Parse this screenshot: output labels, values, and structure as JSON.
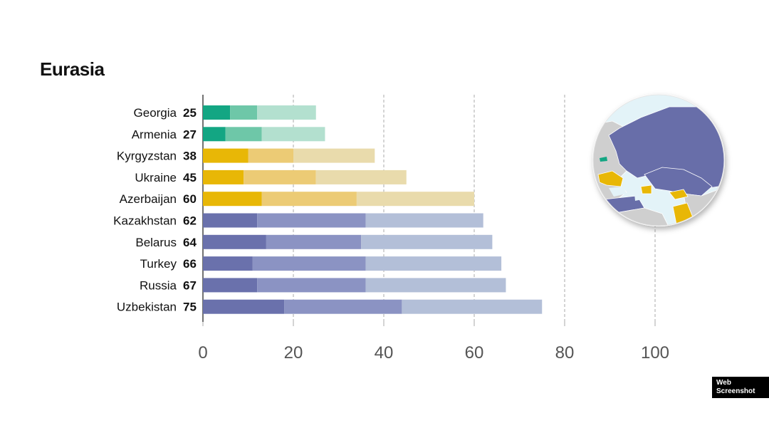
{
  "title": "Eurasia",
  "badge": "Web Screenshot",
  "colors": {
    "free": [
      "#13a683",
      "#6ec7a8",
      "#b3e0cf"
    ],
    "partly_free": [
      "#e8b706",
      "#eccb75",
      "#e9dbac"
    ],
    "not_free": [
      "#6a71ac",
      "#8b93c3",
      "#b3bfd8"
    ],
    "axis": "#444444",
    "grid": "#aaaaaa",
    "tick_text": "#555555",
    "label_text": "#111111"
  },
  "chart_data": {
    "type": "bar",
    "orientation": "horizontal",
    "stacked": true,
    "categories": [
      "Georgia",
      "Armenia",
      "Kyrgyzstan",
      "Ukraine",
      "Azerbaijan",
      "Kazakhstan",
      "Belarus",
      "Turkey",
      "Russia",
      "Uzbekistan"
    ],
    "totals": [
      25,
      27,
      38,
      45,
      60,
      62,
      64,
      66,
      67,
      75
    ],
    "status": [
      "free",
      "free",
      "partly_free",
      "partly_free",
      "partly_free",
      "not_free",
      "not_free",
      "not_free",
      "not_free",
      "not_free"
    ],
    "segments": [
      [
        6,
        6,
        13
      ],
      [
        5,
        8,
        14
      ],
      [
        10,
        10,
        18
      ],
      [
        9,
        16,
        20
      ],
      [
        13,
        21,
        26
      ],
      [
        12,
        24,
        26
      ],
      [
        14,
        21,
        29
      ],
      [
        11,
        25,
        30
      ],
      [
        12,
        24,
        31
      ],
      [
        18,
        26,
        31
      ]
    ],
    "xlim": [
      0,
      100
    ],
    "xticks": [
      0,
      20,
      40,
      60,
      80,
      100
    ],
    "grid": "vertical dashed",
    "legend": "none"
  },
  "map": {
    "description_icon": "eurasia-globe-map"
  }
}
